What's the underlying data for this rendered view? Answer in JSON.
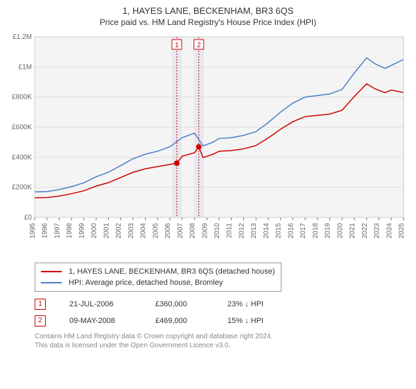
{
  "title": "1, HAYES LANE, BECKENHAM, BR3 6QS",
  "subtitle": "Price paid vs. HM Land Registry's House Price Index (HPI)",
  "chart": {
    "type": "line",
    "background_color": "#f4f4f4",
    "plot_border_color": "#cccccc",
    "grid_color": "#dddddd",
    "axis_text_color": "#666666",
    "axis_fontsize": 10,
    "y_axis": {
      "min": 0,
      "max": 1200000,
      "tick_labels": [
        "£0",
        "£200K",
        "£400K",
        "£600K",
        "£800K",
        "£1M",
        "£1.2M"
      ],
      "tick_values": [
        0,
        200000,
        400000,
        600000,
        800000,
        1000000,
        1200000
      ]
    },
    "x_axis": {
      "min": 1995,
      "max": 2025,
      "tick_labels": [
        "1995",
        "1996",
        "1997",
        "1998",
        "1999",
        "2000",
        "2001",
        "2002",
        "2003",
        "2004",
        "2005",
        "2006",
        "2007",
        "2008",
        "2009",
        "2010",
        "2011",
        "2012",
        "2013",
        "2014",
        "2015",
        "2016",
        "2017",
        "2018",
        "2019",
        "2020",
        "2021",
        "2022",
        "2023",
        "2024",
        "2025"
      ]
    },
    "series": [
      {
        "id": "hpi",
        "label": "HPI: Average price, detached house, Bromley",
        "color": "#4a7ec9",
        "width": 1.5,
        "points": [
          [
            1995,
            170000
          ],
          [
            1996,
            172000
          ],
          [
            1997,
            185000
          ],
          [
            1998,
            205000
          ],
          [
            1999,
            230000
          ],
          [
            2000,
            270000
          ],
          [
            2001,
            300000
          ],
          [
            2002,
            345000
          ],
          [
            2003,
            390000
          ],
          [
            2004,
            420000
          ],
          [
            2005,
            440000
          ],
          [
            2006,
            470000
          ],
          [
            2007,
            530000
          ],
          [
            2008,
            560000
          ],
          [
            2008.7,
            475000
          ],
          [
            2009.5,
            500000
          ],
          [
            2010,
            525000
          ],
          [
            2011,
            530000
          ],
          [
            2012,
            545000
          ],
          [
            2013,
            570000
          ],
          [
            2014,
            630000
          ],
          [
            2015,
            700000
          ],
          [
            2016,
            760000
          ],
          [
            2017,
            800000
          ],
          [
            2018,
            810000
          ],
          [
            2019,
            820000
          ],
          [
            2020,
            850000
          ],
          [
            2021,
            960000
          ],
          [
            2022,
            1060000
          ],
          [
            2022.7,
            1020000
          ],
          [
            2023.5,
            990000
          ],
          [
            2024,
            1010000
          ],
          [
            2025,
            1050000
          ]
        ]
      },
      {
        "id": "price_paid",
        "label": "1, HAYES LANE, BECKENHAM, BR3 6QS (detached house)",
        "color": "#cc0000",
        "width": 1.5,
        "points": [
          [
            1995,
            130000
          ],
          [
            1996,
            132000
          ],
          [
            1997,
            142000
          ],
          [
            1998,
            158000
          ],
          [
            1999,
            177000
          ],
          [
            2000,
            208000
          ],
          [
            2001,
            231000
          ],
          [
            2002,
            265000
          ],
          [
            2003,
            300000
          ],
          [
            2004,
            323000
          ],
          [
            2005,
            338000
          ],
          [
            2006.56,
            360000
          ],
          [
            2007,
            407000
          ],
          [
            2008,
            430000
          ],
          [
            2008.35,
            469000
          ],
          [
            2008.7,
            398000
          ],
          [
            2009.5,
            419000
          ],
          [
            2010,
            440000
          ],
          [
            2011,
            444000
          ],
          [
            2012,
            456000
          ],
          [
            2013,
            477000
          ],
          [
            2014,
            528000
          ],
          [
            2015,
            586000
          ],
          [
            2016,
            636000
          ],
          [
            2017,
            670000
          ],
          [
            2018,
            678000
          ],
          [
            2019,
            687000
          ],
          [
            2020,
            712000
          ],
          [
            2021,
            804000
          ],
          [
            2022,
            888000
          ],
          [
            2022.7,
            854000
          ],
          [
            2023.5,
            829000
          ],
          [
            2024,
            846000
          ],
          [
            2025,
            830000
          ]
        ]
      }
    ],
    "sale_markers": [
      {
        "index": 1,
        "year": 2006.56,
        "price": 360000,
        "band_color": "#e8e8f0",
        "line_color": "#cc0000"
      },
      {
        "index": 2,
        "year": 2008.35,
        "price": 469000,
        "band_color": "#e8e8f0",
        "line_color": "#cc0000"
      }
    ]
  },
  "legend": {
    "border_color": "#999999",
    "items": [
      {
        "color": "#cc0000",
        "label": "1, HAYES LANE, BECKENHAM, BR3 6QS (detached house)"
      },
      {
        "color": "#4a7ec9",
        "label": "HPI: Average price, detached house, Bromley"
      }
    ]
  },
  "sales": [
    {
      "index": "1",
      "date": "21-JUL-2006",
      "price": "£360,000",
      "hpi": "23% ↓ HPI"
    },
    {
      "index": "2",
      "date": "09-MAY-2008",
      "price": "£469,000",
      "hpi": "15% ↓ HPI"
    }
  ],
  "attribution": {
    "line1": "Contains HM Land Registry data © Crown copyright and database right 2024.",
    "line2": "This data is licensed under the Open Government Licence v3.0."
  }
}
